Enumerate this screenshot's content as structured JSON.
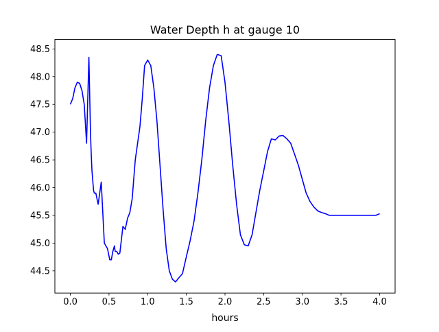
{
  "chart_data": {
    "type": "line",
    "title": "Water Depth h at gauge 10",
    "xlabel": "hours",
    "ylabel": "",
    "xlim": [
      -0.2,
      4.2
    ],
    "ylim": [
      44.1,
      48.67
    ],
    "xticks": [
      0.0,
      0.5,
      1.0,
      1.5,
      2.0,
      2.5,
      3.0,
      3.5,
      4.0
    ],
    "xtick_labels": [
      "0.0",
      "0.5",
      "1.0",
      "1.5",
      "2.0",
      "2.5",
      "3.0",
      "3.5",
      "4.0"
    ],
    "yticks": [
      44.5,
      45.0,
      45.5,
      46.0,
      46.5,
      47.0,
      47.5,
      48.0,
      48.5
    ],
    "ytick_labels": [
      "44.5",
      "45.0",
      "45.5",
      "46.0",
      "46.5",
      "47.0",
      "47.5",
      "48.0",
      "48.5"
    ],
    "grid": false,
    "legend": "none",
    "series": [
      {
        "color": "#0000ff",
        "x": [
          0.0,
          0.03,
          0.06,
          0.09,
          0.12,
          0.15,
          0.18,
          0.21,
          0.24,
          0.26,
          0.27,
          0.28,
          0.3,
          0.31,
          0.33,
          0.36,
          0.4,
          0.44,
          0.48,
          0.51,
          0.53,
          0.55,
          0.57,
          0.58,
          0.6,
          0.62,
          0.64,
          0.68,
          0.71,
          0.74,
          0.77,
          0.8,
          0.84,
          0.87,
          0.9,
          0.93,
          0.96,
          1.0,
          1.04,
          1.08,
          1.12,
          1.16,
          1.2,
          1.24,
          1.28,
          1.32,
          1.36,
          1.4,
          1.45,
          1.5,
          1.55,
          1.6,
          1.65,
          1.7,
          1.75,
          1.8,
          1.85,
          1.9,
          1.95,
          2.0,
          2.05,
          2.1,
          2.15,
          2.2,
          2.25,
          2.3,
          2.35,
          2.4,
          2.45,
          2.5,
          2.55,
          2.6,
          2.65,
          2.7,
          2.75,
          2.8,
          2.85,
          2.9,
          2.95,
          3.0,
          3.05,
          3.1,
          3.15,
          3.2,
          3.25,
          3.3,
          3.35,
          3.38,
          3.4,
          3.42,
          3.45,
          3.5,
          3.55,
          3.6,
          3.65,
          3.7,
          3.75,
          3.8,
          3.85,
          3.9,
          3.95,
          4.0
        ],
        "y": [
          47.5,
          47.6,
          47.8,
          47.9,
          47.88,
          47.75,
          47.5,
          46.8,
          48.35,
          47.0,
          46.6,
          46.3,
          45.95,
          45.9,
          45.9,
          45.7,
          46.1,
          45.0,
          44.9,
          44.7,
          44.7,
          44.85,
          44.95,
          44.85,
          44.85,
          44.8,
          44.82,
          45.3,
          45.25,
          45.45,
          45.55,
          45.8,
          46.5,
          46.8,
          47.1,
          47.6,
          48.2,
          48.3,
          48.2,
          47.8,
          47.2,
          46.4,
          45.6,
          44.9,
          44.5,
          44.35,
          44.3,
          44.37,
          44.45,
          44.75,
          45.05,
          45.4,
          45.9,
          46.5,
          47.2,
          47.8,
          48.2,
          48.4,
          48.38,
          47.9,
          47.2,
          46.4,
          45.7,
          45.15,
          44.97,
          44.95,
          45.15,
          45.55,
          45.95,
          46.3,
          46.65,
          46.88,
          46.86,
          46.93,
          46.94,
          46.88,
          46.8,
          46.6,
          46.4,
          46.15,
          45.9,
          45.75,
          45.65,
          45.58,
          45.55,
          45.53,
          45.5,
          45.5,
          45.5,
          45.5,
          45.5,
          45.5,
          45.5,
          45.5,
          45.5,
          45.5,
          45.5,
          45.5,
          45.5,
          45.5,
          45.5,
          45.53
        ]
      }
    ]
  }
}
